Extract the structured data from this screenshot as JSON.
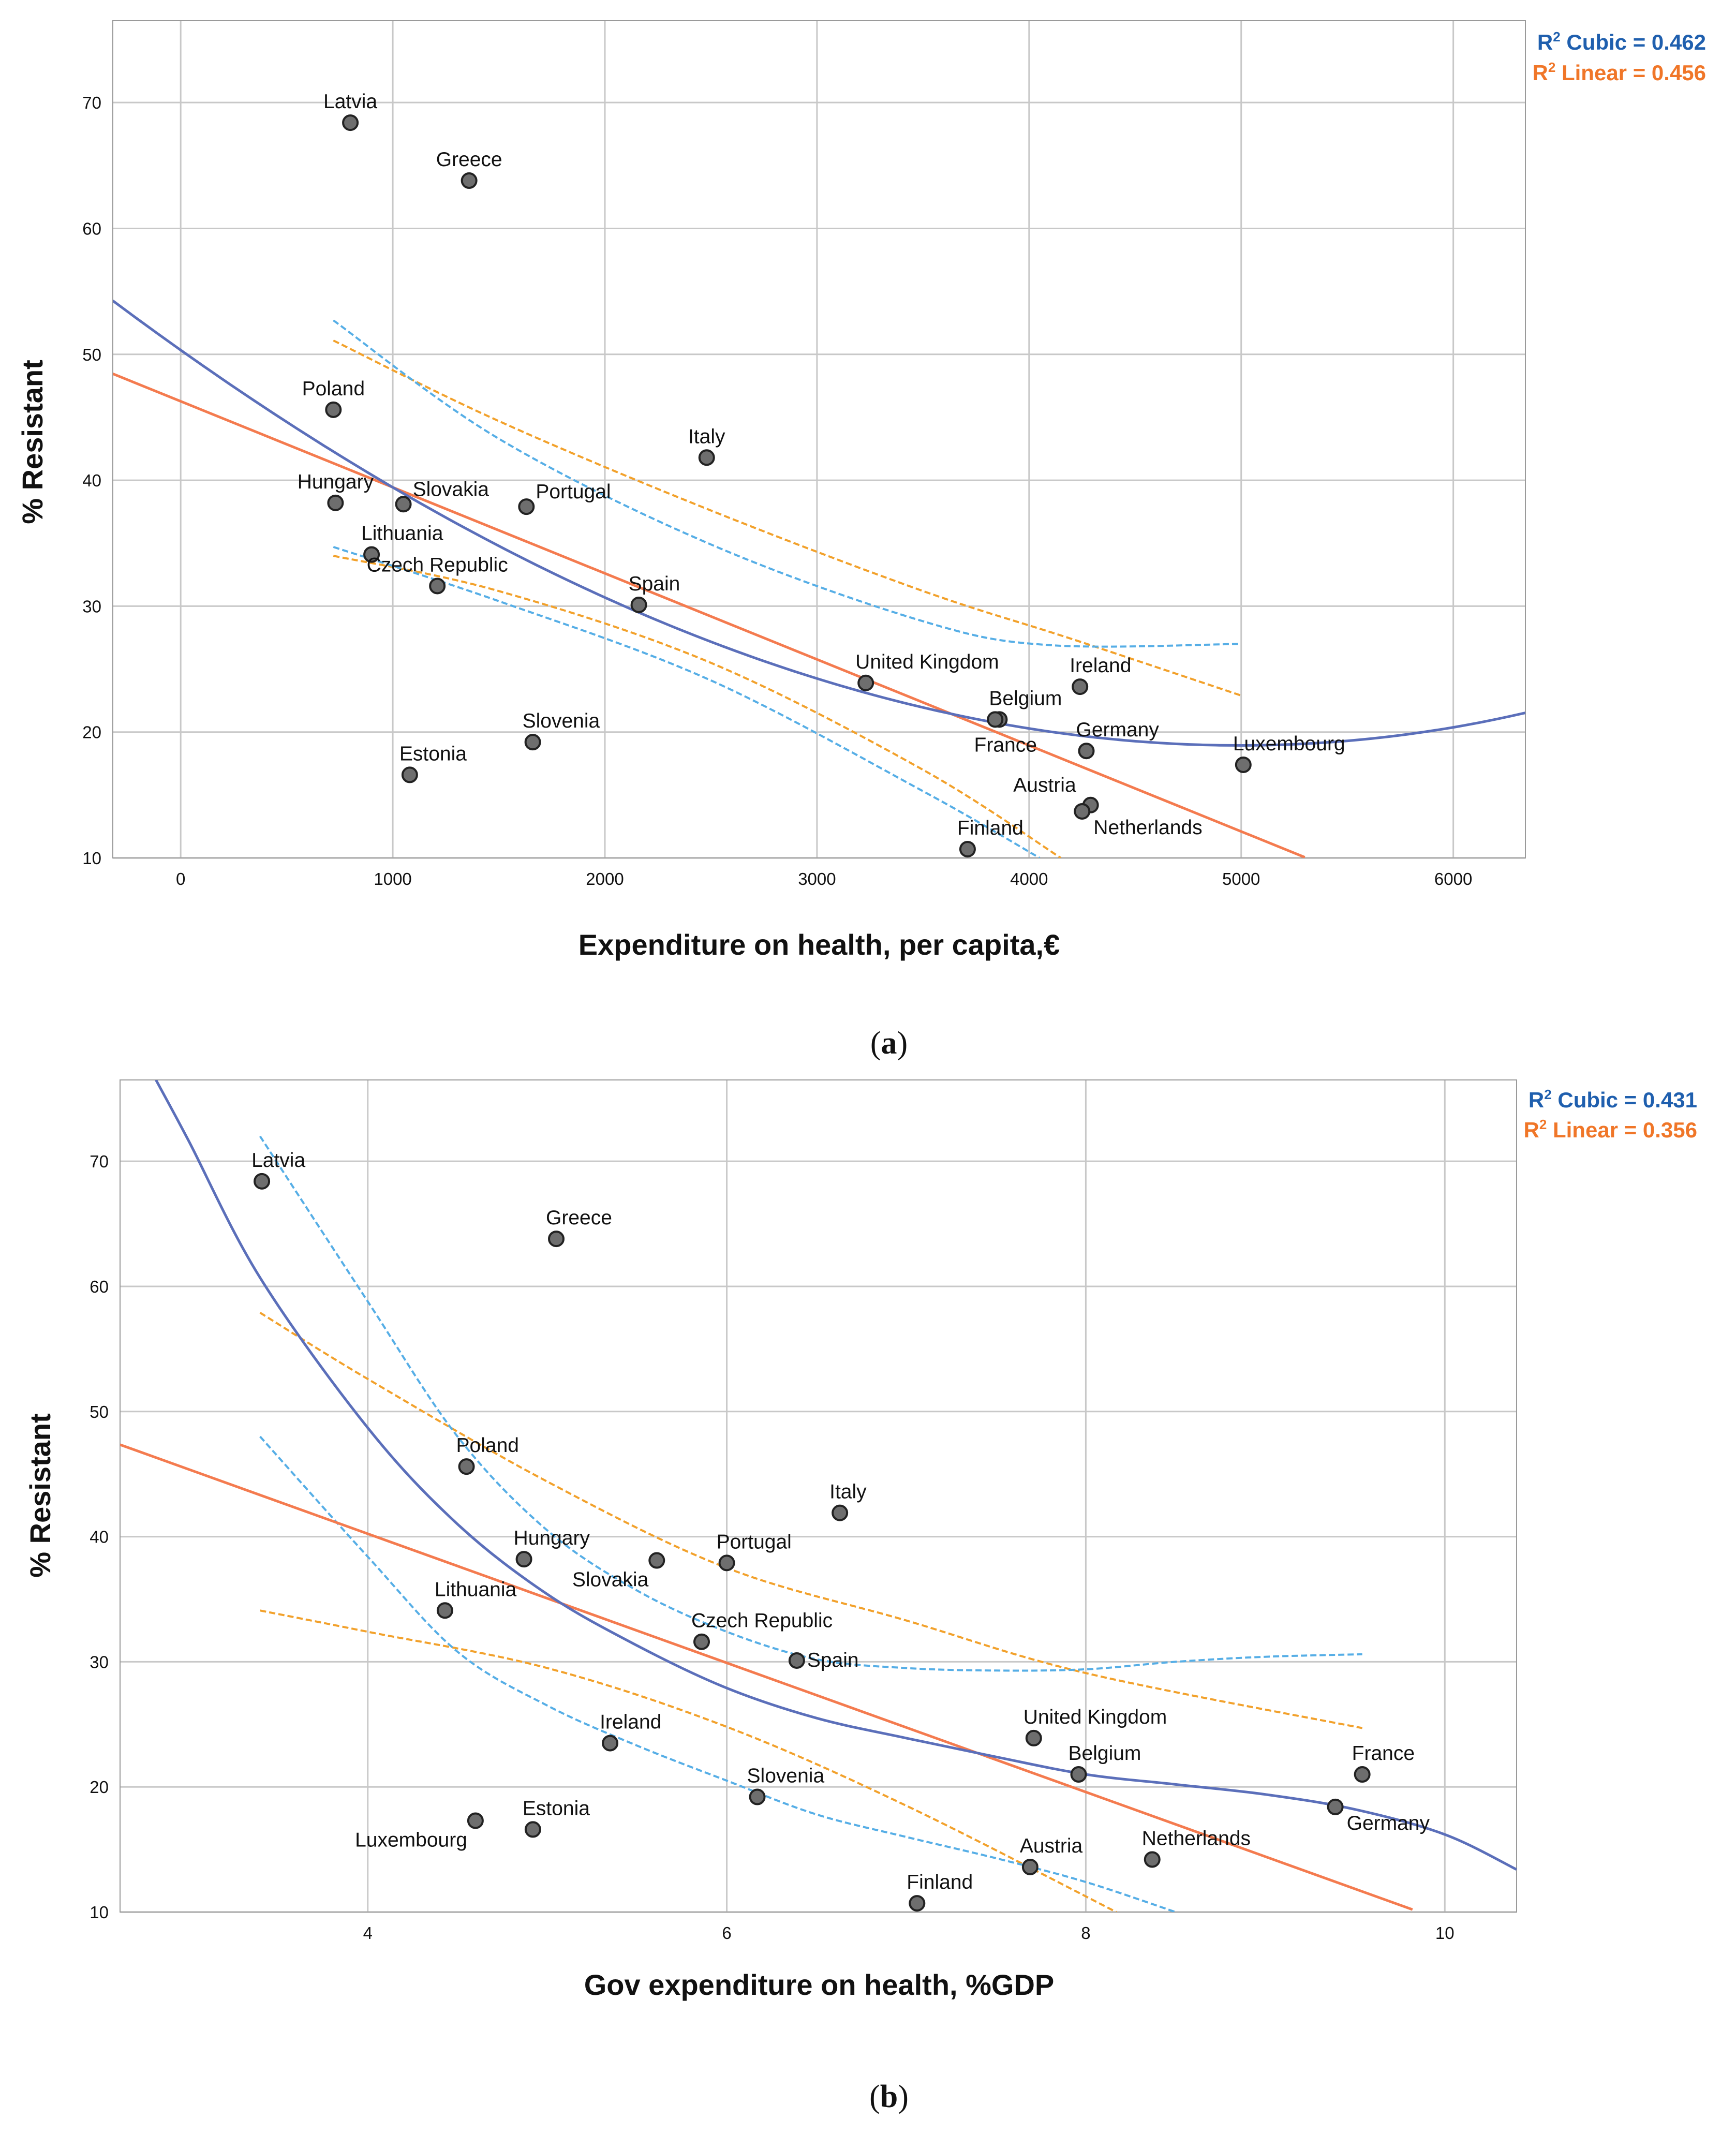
{
  "colors": {
    "cubic": "#5b6fba",
    "linear": "#f47b4f",
    "ci_cubic": "#56aee6",
    "ci_linear": "#f2a12b",
    "r2_cubic_text": "#1f5fae",
    "r2_linear_text": "#f07628",
    "grid": "#c8c8c8",
    "point_fill": "#6e6e6e",
    "point_stroke": "#222222"
  },
  "chart_data": [
    {
      "id": "a",
      "type": "scatter",
      "caption": "a",
      "xlabel": "Expenditure on health, per capita,€",
      "ylabel": "% Resistant",
      "xlim": [
        -320,
        6340
      ],
      "ylim": [
        10,
        76.5
      ],
      "xticks": [
        0,
        1000,
        2000,
        3000,
        4000,
        5000,
        6000
      ],
      "yticks": [
        10,
        20,
        30,
        40,
        50,
        60,
        70
      ],
      "r2_cubic": "R2 Cubic = 0.462",
      "r2_linear": "R2 Linear = 0.456",
      "r2_cubic_parts": [
        "R",
        "2",
        " Cubic = 0.462"
      ],
      "r2_linear_parts": [
        "R",
        "2",
        " Linear = 0.456"
      ],
      "points": [
        {
          "label": "Latvia",
          "x": 800,
          "y": 68.4,
          "pos": "above"
        },
        {
          "label": "Greece",
          "x": 1360,
          "y": 63.8,
          "pos": "above"
        },
        {
          "label": "Poland",
          "x": 720,
          "y": 45.6,
          "pos": "above"
        },
        {
          "label": "Italy",
          "x": 2480,
          "y": 41.8,
          "pos": "above"
        },
        {
          "label": "Hungary",
          "x": 730,
          "y": 38.2,
          "pos": "above"
        },
        {
          "label": "Slovakia",
          "x": 1050,
          "y": 38.1,
          "pos": "right-up"
        },
        {
          "label": "Portugal",
          "x": 1630,
          "y": 37.9,
          "pos": "right-up"
        },
        {
          "label": "Lithuania",
          "x": 900,
          "y": 34.1,
          "pos": "above-right"
        },
        {
          "label": "Czech Republic",
          "x": 1210,
          "y": 31.6,
          "pos": "above"
        },
        {
          "label": "Spain",
          "x": 2160,
          "y": 30.1,
          "pos": "above-right"
        },
        {
          "label": "United Kingdom",
          "x": 3230,
          "y": 23.9,
          "pos": "above-right"
        },
        {
          "label": "Ireland",
          "x": 4240,
          "y": 23.6,
          "pos": "above-right"
        },
        {
          "label": "Belgium",
          "x": 3860,
          "y": 21.0,
          "pos": "above-right"
        },
        {
          "label": "Slovenia",
          "x": 1660,
          "y": 19.2,
          "pos": "above-right"
        },
        {
          "label": "Germany",
          "x": 4270,
          "y": 18.5,
          "pos": "above-right"
        },
        {
          "label": "France",
          "x": 3840,
          "y": 21.0,
          "pos": "below"
        },
        {
          "label": "Luxembourg",
          "x": 5010,
          "y": 17.4,
          "pos": "above-right"
        },
        {
          "label": "Estonia",
          "x": 1080,
          "y": 16.6,
          "pos": "above-right"
        },
        {
          "label": "Austria",
          "x": 4290,
          "y": 14.2,
          "pos": "left-up"
        },
        {
          "label": "Netherlands",
          "x": 4250,
          "y": 13.7,
          "pos": "below-right"
        },
        {
          "label": "Finland",
          "x": 3710,
          "y": 10.7,
          "pos": "above-right"
        }
      ],
      "linear_fit": {
        "intercept": 46.27,
        "slope": -0.006833,
        "x_range": [
          -320,
          5300
        ]
      },
      "cubic_fit": {
        "coefficients": [
          50.34,
          -0.01193,
          1e-06,
          2.6e-11
        ],
        "x_range": [
          -320,
          6340
        ]
      },
      "ci_linear": {
        "x_range": [
          720,
          5000
        ],
        "upper": [
          [
            720,
            51.1
          ],
          [
            1500,
            44.7
          ],
          [
            2500,
            37.6
          ],
          [
            3500,
            31.2
          ],
          [
            4200,
            27.4
          ],
          [
            5000,
            22.9
          ]
        ],
        "lower": [
          [
            720,
            34.0
          ],
          [
            1500,
            31.2
          ],
          [
            2500,
            25.5
          ],
          [
            3500,
            17.0
          ],
          [
            4150,
            10.0
          ]
        ]
      },
      "ci_cubic": {
        "x_range": [
          720,
          5000
        ],
        "upper": [
          [
            720,
            52.7
          ],
          [
            1500,
            43.3
          ],
          [
            2500,
            34.9
          ],
          [
            3500,
            28.8
          ],
          [
            4100,
            26.9
          ],
          [
            5000,
            27.0
          ]
        ],
        "lower": [
          [
            720,
            34.7
          ],
          [
            1500,
            30.4
          ],
          [
            2500,
            24.1
          ],
          [
            3500,
            15.3
          ],
          [
            4050,
            10.0
          ]
        ]
      }
    },
    {
      "id": "b",
      "type": "scatter",
      "caption": "b",
      "xlabel": "Gov expenditure on health, %GDP",
      "ylabel": "% Resistant",
      "xlim": [
        2.62,
        10.4
      ],
      "ylim": [
        10,
        76.5
      ],
      "xticks": [
        4,
        6,
        8,
        10
      ],
      "yticks": [
        10,
        20,
        30,
        40,
        50,
        60,
        70
      ],
      "r2_cubic": "R2 Cubic = 0.431",
      "r2_linear": "R2 Linear = 0.356",
      "r2_cubic_parts": [
        "R",
        "2",
        " Cubic = 0.431"
      ],
      "r2_linear_parts": [
        "R",
        "2",
        " Linear = 0.356"
      ],
      "points": [
        {
          "label": "Latvia",
          "x": 3.41,
          "y": 68.4,
          "pos": "above-right"
        },
        {
          "label": "Greece",
          "x": 5.05,
          "y": 63.8,
          "pos": "above-right"
        },
        {
          "label": "Poland",
          "x": 4.55,
          "y": 45.6,
          "pos": "above-right"
        },
        {
          "label": "Italy",
          "x": 6.63,
          "y": 41.9,
          "pos": "above-right"
        },
        {
          "label": "Hungary",
          "x": 4.87,
          "y": 38.2,
          "pos": "above-right"
        },
        {
          "label": "Slovakia",
          "x": 5.61,
          "y": 38.1,
          "pos": "below-left"
        },
        {
          "label": "Portugal",
          "x": 6.0,
          "y": 37.9,
          "pos": "above-right"
        },
        {
          "label": "Lithuania",
          "x": 4.43,
          "y": 34.1,
          "pos": "above-right"
        },
        {
          "label": "Czech Republic",
          "x": 5.86,
          "y": 31.6,
          "pos": "above-right"
        },
        {
          "label": "Spain",
          "x": 6.39,
          "y": 30.1,
          "pos": "right"
        },
        {
          "label": "United Kingdom",
          "x": 7.71,
          "y": 23.9,
          "pos": "above-right"
        },
        {
          "label": "Ireland",
          "x": 5.35,
          "y": 23.5,
          "pos": "above-right"
        },
        {
          "label": "Belgium",
          "x": 7.96,
          "y": 21.0,
          "pos": "above-right"
        },
        {
          "label": "France",
          "x": 9.54,
          "y": 21.0,
          "pos": "above-right"
        },
        {
          "label": "Slovenia",
          "x": 6.17,
          "y": 19.2,
          "pos": "above-right"
        },
        {
          "label": "Germany",
          "x": 9.39,
          "y": 18.4,
          "pos": "below-right"
        },
        {
          "label": "Luxembourg",
          "x": 4.6,
          "y": 17.3,
          "pos": "below-left"
        },
        {
          "label": "Estonia",
          "x": 4.92,
          "y": 16.6,
          "pos": "above-right"
        },
        {
          "label": "Austria",
          "x": 7.69,
          "y": 13.6,
          "pos": "above-right"
        },
        {
          "label": "Netherlands",
          "x": 8.37,
          "y": 14.2,
          "pos": "above-right"
        },
        {
          "label": "Finland",
          "x": 7.06,
          "y": 10.7,
          "pos": "above-right"
        }
      ],
      "linear_fit": {
        "intercept": 60.87,
        "slope": -5.16,
        "x_range": [
          2.62,
          9.82
        ]
      },
      "cubic_fit": {
        "points": [
          [
            2.82,
            76.5
          ],
          [
            3.0,
            71.7
          ],
          [
            3.4,
            60.7
          ],
          [
            4.0,
            48.7
          ],
          [
            4.5,
            41.0
          ],
          [
            5.0,
            35.4
          ],
          [
            5.5,
            31.3
          ],
          [
            6.0,
            27.9
          ],
          [
            6.5,
            25.5
          ],
          [
            7.0,
            23.9
          ],
          [
            7.5,
            22.4
          ],
          [
            8.0,
            21.0
          ],
          [
            8.5,
            20.2
          ],
          [
            9.0,
            19.4
          ],
          [
            9.5,
            18.2
          ],
          [
            10.0,
            16.2
          ],
          [
            10.4,
            13.4
          ]
        ]
      },
      "ci_linear": {
        "upper": [
          [
            3.4,
            57.9
          ],
          [
            4.0,
            52.6
          ],
          [
            5.0,
            44.4
          ],
          [
            6.0,
            37.5
          ],
          [
            7.0,
            33.3
          ],
          [
            8.0,
            29.1
          ],
          [
            9.54,
            24.7
          ]
        ],
        "lower": [
          [
            3.4,
            34.1
          ],
          [
            4.0,
            32.4
          ],
          [
            5.0,
            29.5
          ],
          [
            6.0,
            24.8
          ],
          [
            7.0,
            18.5
          ],
          [
            8.17,
            10.0
          ]
        ]
      },
      "ci_cubic": {
        "upper": [
          [
            3.4,
            72.0
          ],
          [
            4.0,
            58.8
          ],
          [
            4.5,
            48.0
          ],
          [
            5.0,
            40.5
          ],
          [
            5.5,
            35.7
          ],
          [
            6.0,
            32.4
          ],
          [
            6.5,
            30.2
          ],
          [
            7.0,
            29.5
          ],
          [
            7.5,
            29.3
          ],
          [
            8.0,
            29.4
          ],
          [
            8.5,
            30.0
          ],
          [
            9.0,
            30.4
          ],
          [
            9.54,
            30.6
          ]
        ],
        "lower": [
          [
            3.4,
            48.0
          ],
          [
            4.0,
            38.4
          ],
          [
            4.5,
            30.8
          ],
          [
            5.0,
            26.5
          ],
          [
            5.5,
            23.3
          ],
          [
            6.0,
            20.5
          ],
          [
            6.5,
            17.8
          ],
          [
            7.0,
            16.0
          ],
          [
            7.5,
            14.3
          ],
          [
            8.0,
            12.4
          ],
          [
            8.5,
            10.0
          ]
        ]
      }
    }
  ]
}
